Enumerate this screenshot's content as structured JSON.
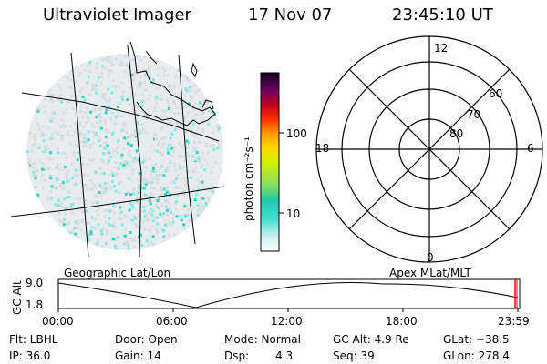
{
  "header": {
    "instrument": "Ultraviolet Imager",
    "date": "17 Nov 07",
    "time": "23:45:10 UT"
  },
  "colorbar": {
    "unit_label": "photon cm⁻²s⁻¹",
    "ticks": [
      "100",
      "10"
    ]
  },
  "polar_plot": {
    "mlt_labels": {
      "top": "12",
      "left": "18",
      "right": "6",
      "bottom": "0"
    },
    "lat_labels": [
      "60",
      "70",
      "80"
    ]
  },
  "panel_labels": {
    "left": "Geographic Lat/Lon",
    "right": "Apex MLat/MLT"
  },
  "altitude_plot": {
    "ylabel": "GC Alt",
    "y_ticks": [
      "9.0",
      "1.8"
    ],
    "x_ticks": [
      "00:00",
      "06:00",
      "12:00",
      "18:00",
      "23:59"
    ],
    "marker_color": "#ff0000"
  },
  "footer": {
    "row1": {
      "flt": "Flt: LBHL",
      "door": "Door: Open",
      "mode": "Mode: Normal",
      "gcalt": "GC Alt: 4.9 Re",
      "glat": "GLat: −38.5"
    },
    "row2": {
      "ip": "IP: 36.0",
      "gain": "Gain: 14",
      "dsp_label": "Dsp:",
      "dsp_value": "4.3",
      "seq": "Seq: 39",
      "glon": "GLon: 278.4"
    }
  },
  "colors": {
    "speckle_light": "#d8dde0",
    "speckle_cyan": "#7fe8e8",
    "speckle_teal": "#2ad4c8"
  }
}
